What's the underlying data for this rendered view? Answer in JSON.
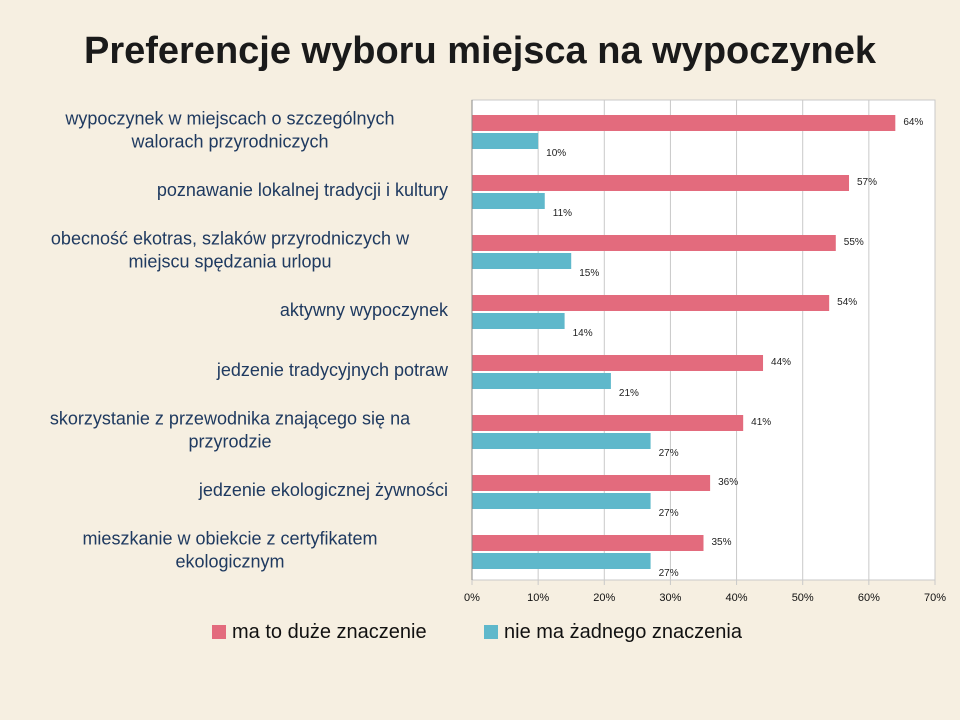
{
  "title": "Preferencje wyboru miejsca na wypoczynek",
  "colors": {
    "series0": "#e36b7d",
    "series1": "#5fb8cb",
    "grid": "#c9c9c9",
    "plot_bg": "#ffffff"
  },
  "chart_data": {
    "type": "bar",
    "orientation": "horizontal",
    "categories": [
      [
        "wypoczynek w miejscach o szczególnych",
        "walorach przyrodniczych"
      ],
      [
        "poznawanie lokalnej tradycji i kultury"
      ],
      [
        "obecność ekotras, szlaków przyrodniczych w",
        "miejscu spędzania urlopu"
      ],
      [
        "aktywny wypoczynek"
      ],
      [
        "jedzenie tradycyjnych potraw"
      ],
      [
        "skorzystanie z przewodnika znającego się na",
        "przyrodzie"
      ],
      [
        "jedzenie ekologicznej żywności"
      ],
      [
        "mieszkanie w obiekcie z certyfikatem",
        "ekologicznym"
      ]
    ],
    "series": [
      {
        "name": "ma to duże znaczenie",
        "values": [
          64,
          57,
          55,
          54,
          44,
          41,
          36,
          35
        ]
      },
      {
        "name": "nie ma żadnego znaczenia",
        "values": [
          10,
          11,
          15,
          14,
          21,
          27,
          27,
          27
        ]
      }
    ],
    "xlim": [
      0,
      70
    ],
    "xticks": [
      0,
      10,
      20,
      30,
      40,
      50,
      60,
      70
    ],
    "value_suffix": "%",
    "grid": true,
    "legend": "bottom"
  }
}
